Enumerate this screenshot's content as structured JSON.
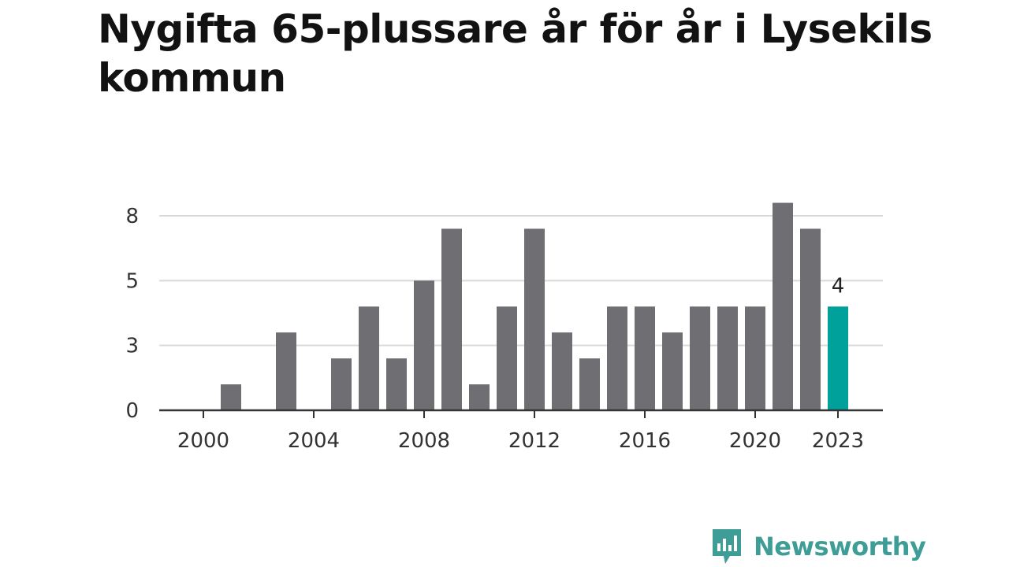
{
  "title": "Nygifta 65-plussare år för år i Lysekils kommun",
  "brand": {
    "name": "Newsworthy",
    "color": "#3e9d96"
  },
  "colors": {
    "bar": "#6f6e73",
    "highlight": "#00a19a",
    "grid": "#d9d9d9",
    "axis": "#333333"
  },
  "chart_data": {
    "type": "bar",
    "title": "Nygifta 65-plussare år för år i Lysekils kommun",
    "xlabel": "",
    "ylabel": "",
    "categories": [
      2000,
      2001,
      2002,
      2003,
      2004,
      2005,
      2006,
      2007,
      2008,
      2009,
      2010,
      2011,
      2012,
      2013,
      2014,
      2015,
      2016,
      2017,
      2018,
      2019,
      2020,
      2021,
      2022,
      2023
    ],
    "values": [
      0,
      1,
      0,
      3,
      0,
      2,
      4,
      2,
      5,
      7,
      1,
      4,
      7,
      3,
      2,
      4,
      4,
      3,
      4,
      4,
      4,
      8,
      7,
      4
    ],
    "ylim": [
      0,
      7.5
    ],
    "yticks": [
      0,
      2.5,
      5,
      7.5
    ],
    "ytick_labels": [
      "0",
      "3",
      "5",
      "8"
    ],
    "xticks": [
      2000,
      2004,
      2008,
      2012,
      2016,
      2020,
      2023
    ],
    "xtick_labels": [
      "2000",
      "2004",
      "2008",
      "2012",
      "2016",
      "2020",
      "2023"
    ],
    "highlight_index": 23,
    "annotations": [
      {
        "category": 2023,
        "text": "4"
      }
    ],
    "grid": true
  }
}
